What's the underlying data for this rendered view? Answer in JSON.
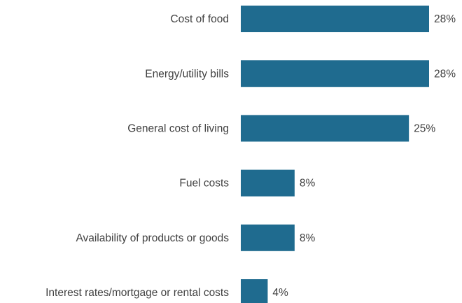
{
  "chart_data": {
    "type": "bar",
    "orientation": "horizontal",
    "categories": [
      "Cost of food",
      "Energy/utility bills",
      "General cost of living",
      "Fuel costs",
      "Availability of products or goods",
      "Interest rates/mortgage or rental costs"
    ],
    "values": [
      28,
      28,
      25,
      8,
      8,
      4
    ],
    "value_labels": [
      "28%",
      "28%",
      "25%",
      "8%",
      "8%",
      "4%"
    ],
    "color": "#1f6b8f"
  }
}
